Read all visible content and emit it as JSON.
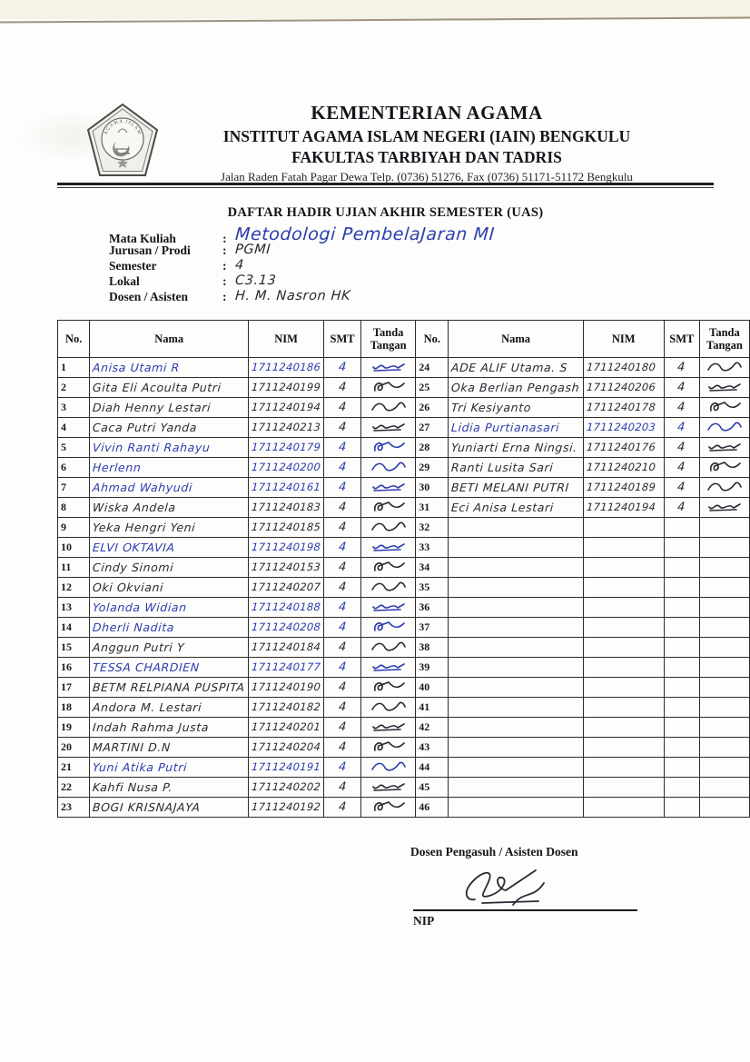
{
  "ink_colors": {
    "blue": "#2c3cae",
    "dark": "#262a33"
  },
  "letterhead": {
    "ministry": "KEMENTERIAN AGAMA",
    "institute": "INSTITUT AGAMA ISLAM NEGERI (IAIN) BENGKULU",
    "faculty": "FAKULTAS TARBIYAH DAN TADRIS",
    "address": "Jalan Raden Fatah Pagar Dewa Telp. (0736) 51276, Fax  (0736) 51171-51172 Bengkulu",
    "logo_arc_text": "INSTITUT AGAMA ISLAM NEGERI"
  },
  "title": "DAFTAR HADIR UJIAN AKHIR SEMESTER (UAS)",
  "form": {
    "fields": [
      {
        "label": "Mata Kuliah",
        "value": "Metodologi PembelaJaran MI",
        "ink": "blue",
        "size": "big"
      },
      {
        "label": "Jurusan / Prodi",
        "value": "PGMI",
        "ink": "dark",
        "size": "normal"
      },
      {
        "label": "Semester",
        "value": "4",
        "ink": "dark",
        "size": "normal"
      },
      {
        "label": "Lokal",
        "value": "C3.13",
        "ink": "dark",
        "size": "normal"
      },
      {
        "label": "Dosen / Asisten",
        "value": "H. M. Nasron HK",
        "ink": "dark",
        "size": "normal"
      }
    ]
  },
  "table": {
    "headers": [
      "No.",
      "Nama",
      "NIM",
      "SMT",
      "Tanda Tangan"
    ],
    "left_rows": [
      {
        "no": "1",
        "nama": "Anisa Utami R",
        "nim": "1711240186",
        "smt": "4",
        "ink": "blue",
        "sign": true
      },
      {
        "no": "2",
        "nama": "Gita Eli Acoulta Putri",
        "nim": "1711240199",
        "smt": "4",
        "ink": "dark",
        "sign": true
      },
      {
        "no": "3",
        "nama": "Diah Henny Lestari",
        "nim": "1711240194",
        "smt": "4",
        "ink": "dark",
        "sign": true
      },
      {
        "no": "4",
        "nama": "Caca Putri Yanda",
        "nim": "1711240213",
        "smt": "4",
        "ink": "dark",
        "sign": true
      },
      {
        "no": "5",
        "nama": "Vivin Ranti Rahayu",
        "nim": "1711240179",
        "smt": "4",
        "ink": "blue",
        "sign": true
      },
      {
        "no": "6",
        "nama": "Herlenn",
        "nim": "1711240200",
        "smt": "4",
        "ink": "blue",
        "sign": true
      },
      {
        "no": "7",
        "nama": "Ahmad Wahyudi",
        "nim": "1711240161",
        "smt": "4",
        "ink": "blue",
        "sign": true
      },
      {
        "no": "8",
        "nama": "Wiska Andela",
        "nim": "1711240183",
        "smt": "4",
        "ink": "dark",
        "sign": true
      },
      {
        "no": "9",
        "nama": "Yeka Hengri Yeni",
        "nim": "1711240185",
        "smt": "4",
        "ink": "dark",
        "sign": true
      },
      {
        "no": "10",
        "nama": "ELVI OKTAVIA",
        "nim": "1711240198",
        "smt": "4",
        "ink": "blue",
        "sign": true
      },
      {
        "no": "11",
        "nama": "Cindy Sinomi",
        "nim": "1711240153",
        "smt": "4",
        "ink": "dark",
        "sign": true
      },
      {
        "no": "12",
        "nama": "Oki Okviani",
        "nim": "1711240207",
        "smt": "4",
        "ink": "dark",
        "sign": true
      },
      {
        "no": "13",
        "nama": "Yolanda Widian",
        "nim": "1711240188",
        "smt": "4",
        "ink": "blue",
        "sign": true
      },
      {
        "no": "14",
        "nama": "Dherli Nadita",
        "nim": "1711240208",
        "smt": "4",
        "ink": "blue",
        "sign": true
      },
      {
        "no": "15",
        "nama": "Anggun Putri Y",
        "nim": "1711240184",
        "smt": "4",
        "ink": "dark",
        "sign": true
      },
      {
        "no": "16",
        "nama": "TESSA CHARDIEN",
        "nim": "1711240177",
        "smt": "4",
        "ink": "blue",
        "sign": true
      },
      {
        "no": "17",
        "nama": "BETM RELPIANA PUSPITA",
        "nim": "1711240190",
        "smt": "4",
        "ink": "dark",
        "sign": true
      },
      {
        "no": "18",
        "nama": "Andora M. Lestari",
        "nim": "1711240182",
        "smt": "4",
        "ink": "dark",
        "sign": true
      },
      {
        "no": "19",
        "nama": "Indah Rahma Justa",
        "nim": "1711240201",
        "smt": "4",
        "ink": "dark",
        "sign": true
      },
      {
        "no": "20",
        "nama": "MARTINI D.N",
        "nim": "1711240204",
        "smt": "4",
        "ink": "dark",
        "sign": true
      },
      {
        "no": "21",
        "nama": "Yuni Atika Putri",
        "nim": "1711240191",
        "smt": "4",
        "ink": "blue",
        "sign": true
      },
      {
        "no": "22",
        "nama": "Kahfi Nusa P.",
        "nim": "1711240202",
        "smt": "4",
        "ink": "dark",
        "sign": true
      },
      {
        "no": "23",
        "nama": "BOGI KRISNAJAYA",
        "nim": "1711240192",
        "smt": "4",
        "ink": "dark",
        "sign": true
      }
    ],
    "right_rows": [
      {
        "no": "24",
        "nama": "ADE ALIF Utama. S",
        "nim": "1711240180",
        "smt": "4",
        "ink": "dark",
        "sign": true
      },
      {
        "no": "25",
        "nama": "Oka Berlian Pengash",
        "nim": "1711240206",
        "smt": "4",
        "ink": "dark",
        "sign": true
      },
      {
        "no": "26",
        "nama": "Tri Kesiyanto",
        "nim": "1711240178",
        "smt": "4",
        "ink": "dark",
        "sign": true
      },
      {
        "no": "27",
        "nama": "Lidia Purtianasari",
        "nim": "1711240203",
        "smt": "4",
        "ink": "blue",
        "sign": true
      },
      {
        "no": "28",
        "nama": "Yuniarti Erna Ningsi.",
        "nim": "1711240176",
        "smt": "4",
        "ink": "dark",
        "sign": true
      },
      {
        "no": "29",
        "nama": "Ranti Lusita Sari",
        "nim": "1711240210",
        "smt": "4",
        "ink": "dark",
        "sign": true
      },
      {
        "no": "30",
        "nama": "BETI MELANI PUTRI",
        "nim": "1711240189",
        "smt": "4",
        "ink": "dark",
        "sign": true
      },
      {
        "no": "31",
        "nama": "Eci Anisa Lestari",
        "nim": "1711240194",
        "smt": "4",
        "ink": "dark",
        "sign": true
      },
      {
        "no": "32",
        "nama": "",
        "nim": "",
        "smt": "",
        "ink": "dark",
        "sign": false
      },
      {
        "no": "33",
        "nama": "",
        "nim": "",
        "smt": "",
        "ink": "dark",
        "sign": false
      },
      {
        "no": "34",
        "nama": "",
        "nim": "",
        "smt": "",
        "ink": "dark",
        "sign": false
      },
      {
        "no": "35",
        "nama": "",
        "nim": "",
        "smt": "",
        "ink": "dark",
        "sign": false
      },
      {
        "no": "36",
        "nama": "",
        "nim": "",
        "smt": "",
        "ink": "dark",
        "sign": false
      },
      {
        "no": "37",
        "nama": "",
        "nim": "",
        "smt": "",
        "ink": "dark",
        "sign": false
      },
      {
        "no": "38",
        "nama": "",
        "nim": "",
        "smt": "",
        "ink": "dark",
        "sign": false
      },
      {
        "no": "39",
        "nama": "",
        "nim": "",
        "smt": "",
        "ink": "dark",
        "sign": false
      },
      {
        "no": "40",
        "nama": "",
        "nim": "",
        "smt": "",
        "ink": "dark",
        "sign": false
      },
      {
        "no": "41",
        "nama": "",
        "nim": "",
        "smt": "",
        "ink": "dark",
        "sign": false
      },
      {
        "no": "42",
        "nama": "",
        "nim": "",
        "smt": "",
        "ink": "dark",
        "sign": false
      },
      {
        "no": "43",
        "nama": "",
        "nim": "",
        "smt": "",
        "ink": "dark",
        "sign": false
      },
      {
        "no": "44",
        "nama": "",
        "nim": "",
        "smt": "",
        "ink": "dark",
        "sign": false
      },
      {
        "no": "45",
        "nama": "",
        "nim": "",
        "smt": "",
        "ink": "dark",
        "sign": false
      },
      {
        "no": "46",
        "nama": "",
        "nim": "",
        "smt": "",
        "ink": "dark",
        "sign": false
      }
    ]
  },
  "footer": {
    "caption": "Dosen Pengasuh  / Asisten Dosen",
    "nip_label": "NIP"
  }
}
